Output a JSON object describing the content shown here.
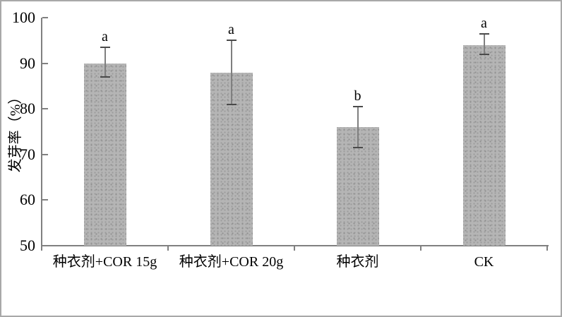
{
  "frame": {
    "border_color": "#a9a9a9",
    "background": "#ffffff"
  },
  "chart_data": {
    "type": "bar",
    "title": "",
    "categories": [
      "种衣剂+COR 15g",
      "种衣剂+COR 20g",
      "种衣剂",
      "CK"
    ],
    "values": [
      90,
      88,
      76,
      94
    ],
    "error_up": [
      3.5,
      7,
      4.5,
      2.5
    ],
    "error_down": [
      3,
      7,
      4.5,
      2
    ],
    "sig_letters": [
      "a",
      "a",
      "b",
      "a"
    ],
    "xlabel": "",
    "ylabel": "发芽率（%）",
    "ylim": [
      50,
      100
    ],
    "yticks": [
      100,
      90,
      80,
      70,
      60,
      50
    ],
    "grid": false,
    "legend": false,
    "colors": {
      "bar_fill": "#b5b5b5",
      "bar_dot": "#979797",
      "axis": "#808080",
      "error_line": "#7f7f7f",
      "error_cap": "#4a4a4a",
      "text": "#000000"
    }
  }
}
